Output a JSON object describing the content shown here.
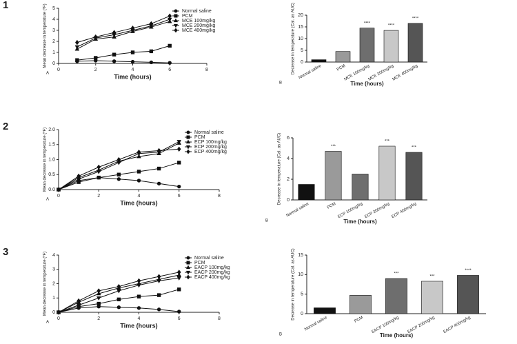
{
  "chart_data": [
    {
      "type": "line",
      "figure_number": "1",
      "panel": "A",
      "xlabel": "Time (hours)",
      "ylabel": "Mean decrease in temperature (ºF)",
      "xlim": [
        0,
        8
      ],
      "xticks": [
        0,
        2,
        4,
        6,
        8
      ],
      "ylim": [
        0,
        5
      ],
      "yticks": [
        0,
        1,
        2,
        3,
        4,
        5
      ],
      "x": [
        1,
        2,
        3,
        4,
        5,
        6
      ],
      "series": [
        {
          "name": "Normal saline",
          "color": "#111111",
          "marker": "circle",
          "values": [
            0.2,
            0.25,
            0.2,
            0.15,
            0.1,
            0.05
          ]
        },
        {
          "name": "PCM",
          "color": "#111111",
          "marker": "square",
          "values": [
            0.3,
            0.5,
            0.8,
            1.0,
            1.1,
            1.6
          ]
        },
        {
          "name": "MCE 100mg/kg",
          "color": "#111111",
          "marker": "triangle",
          "values": [
            1.3,
            2.2,
            2.4,
            2.9,
            3.3,
            3.8
          ]
        },
        {
          "name": "MCE 200mg/kg",
          "color": "#111111",
          "marker": "triangle-down",
          "values": [
            1.5,
            2.3,
            2.6,
            3.0,
            3.4,
            4.0
          ]
        },
        {
          "name": "MCE 400mg/kg",
          "color": "#111111",
          "marker": "diamond",
          "values": [
            1.9,
            2.4,
            2.8,
            3.2,
            3.6,
            4.3
          ]
        }
      ]
    },
    {
      "type": "bar",
      "panel": "B",
      "xlabel": "Time (hours)",
      "ylabel": "Decrease in temperature (Cal. as AUC)",
      "ylim": [
        0,
        20
      ],
      "yticks": [
        0,
        5,
        10,
        15,
        20
      ],
      "categories": [
        "Normal saline",
        "PCM",
        "MCE 100mg/kg",
        "MCE 200mg/kg",
        "MCE 400mg/kg"
      ],
      "values": [
        1,
        4.5,
        14.5,
        13.5,
        16.5
      ],
      "colors": [
        "#111111",
        "#9a9a9a",
        "#6e6e6e",
        "#c8c8c8",
        "#555555"
      ],
      "annotations": [
        null,
        null,
        "****",
        "****",
        "****"
      ]
    },
    {
      "type": "line",
      "figure_number": "2",
      "panel": "A",
      "xlabel": "Time (hours)",
      "ylabel": "Mean decrease in temperature (ºF)",
      "xlim": [
        0,
        8
      ],
      "xticks": [
        0,
        2,
        4,
        6,
        8
      ],
      "ylim": [
        0,
        2
      ],
      "yticks": [
        {
          "value": 0,
          "label": "0.0"
        },
        {
          "value": 0.5,
          "label": "0.5"
        },
        {
          "value": 1,
          "label": "1.0"
        },
        {
          "value": 1.5,
          "label": "1.5"
        },
        {
          "value": 2,
          "label": "2.0"
        }
      ],
      "x": [
        0,
        1,
        2,
        3,
        4,
        5,
        6
      ],
      "series": [
        {
          "name": "Normal saline",
          "color": "#111111",
          "marker": "circle",
          "values": [
            0,
            0.3,
            0.4,
            0.35,
            0.3,
            0.2,
            0.1
          ]
        },
        {
          "name": "PCM",
          "color": "#111111",
          "marker": "square",
          "values": [
            0,
            0.25,
            0.4,
            0.5,
            0.6,
            0.7,
            0.9
          ]
        },
        {
          "name": "ECP 100mg/kg",
          "color": "#111111",
          "marker": "triangle",
          "values": [
            0,
            0.4,
            0.65,
            0.95,
            1.1,
            1.2,
            1.55
          ]
        },
        {
          "name": "ECP 200mg/kg",
          "color": "#111111",
          "marker": "triangle-down",
          "values": [
            0,
            0.35,
            0.6,
            0.9,
            1.2,
            1.25,
            1.6
          ]
        },
        {
          "name": "ECP 400mg/kg",
          "color": "#111111",
          "marker": "diamond",
          "values": [
            0,
            0.45,
            0.75,
            1.0,
            1.25,
            1.3,
            1.35
          ]
        }
      ]
    },
    {
      "type": "bar",
      "panel": "B",
      "xlabel": "Time (hours)",
      "ylabel": "Decrease in temperature (Cal. as AUC)",
      "ylim": [
        0,
        6
      ],
      "yticks": [
        0,
        2,
        4,
        6
      ],
      "categories": [
        "Normal saline",
        "PCM",
        "ECP 100mg/kg",
        "ECP 200mg/kg",
        "ECP 400mg/kg"
      ],
      "values": [
        1.5,
        4.7,
        2.5,
        5.2,
        4.6
      ],
      "colors": [
        "#111111",
        "#9a9a9a",
        "#6e6e6e",
        "#c8c8c8",
        "#555555"
      ],
      "annotations": [
        null,
        "***",
        null,
        "***",
        "***"
      ]
    },
    {
      "type": "line",
      "figure_number": "3",
      "panel": "A",
      "xlabel": "Time (hours)",
      "ylabel": "Mean decrease in temperature (ºF)",
      "xlim": [
        0,
        8
      ],
      "xticks": [
        0,
        2,
        4,
        6,
        8
      ],
      "ylim": [
        0,
        4
      ],
      "yticks": [
        0,
        1,
        2,
        3,
        4
      ],
      "x": [
        0,
        1,
        2,
        3,
        4,
        5,
        6
      ],
      "series": [
        {
          "name": "Normal saline",
          "color": "#111111",
          "marker": "circle",
          "values": [
            0,
            0.3,
            0.4,
            0.35,
            0.3,
            0.2,
            0.05
          ]
        },
        {
          "name": "PCM",
          "color": "#111111",
          "marker": "square",
          "values": [
            0,
            0.4,
            0.6,
            0.9,
            1.1,
            1.2,
            1.6
          ]
        },
        {
          "name": "EACP 100mg/kg",
          "color": "#111111",
          "marker": "triangle",
          "values": [
            0,
            0.7,
            1.3,
            1.7,
            2.0,
            2.3,
            2.6
          ]
        },
        {
          "name": "EACP 200mg/kg",
          "color": "#111111",
          "marker": "triangle-down",
          "values": [
            0,
            0.5,
            1.0,
            1.5,
            1.9,
            2.2,
            2.4
          ]
        },
        {
          "name": "EACP 400mg/kg",
          "color": "#111111",
          "marker": "diamond",
          "values": [
            0,
            0.8,
            1.5,
            1.8,
            2.2,
            2.5,
            2.8
          ]
        }
      ]
    },
    {
      "type": "bar",
      "panel": "B",
      "xlabel": "Time (hours)",
      "ylabel": "Decrease in temperature (Cal. as AUC)",
      "ylim": [
        0,
        15
      ],
      "yticks": [
        0,
        5,
        10,
        15
      ],
      "categories": [
        "Normal saline",
        "PCM",
        "EACP 100mg/kg",
        "EACP 200mg/kg",
        "EACP 400mg/kg"
      ],
      "values": [
        1.5,
        4.7,
        9,
        8.3,
        9.8
      ],
      "colors": [
        "#111111",
        "#9a9a9a",
        "#6e6e6e",
        "#c8c8c8",
        "#555555"
      ],
      "annotations": [
        null,
        null,
        "***",
        "***",
        "****"
      ]
    }
  ]
}
